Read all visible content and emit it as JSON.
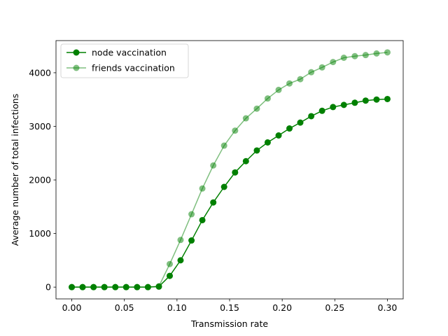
{
  "chart_data": {
    "type": "line",
    "title": "",
    "xlabel": "Transmission rate",
    "ylabel": "Average number of total infections",
    "xlim": [
      -0.015,
      0.315
    ],
    "ylim": [
      -220,
      4600
    ],
    "xticks": [
      0.0,
      0.05,
      0.1,
      0.15,
      0.2,
      0.25,
      0.3
    ],
    "xtick_labels": [
      "0.00",
      "0.05",
      "0.10",
      "0.15",
      "0.20",
      "0.25",
      "0.30"
    ],
    "yticks": [
      0,
      1000,
      2000,
      3000,
      4000
    ],
    "ytick_labels": [
      "0",
      "1000",
      "2000",
      "3000",
      "4000"
    ],
    "grid": false,
    "legend_position": "top-left",
    "x": [
      0.0,
      0.0103,
      0.0207,
      0.031,
      0.0414,
      0.0517,
      0.0621,
      0.0724,
      0.0828,
      0.0931,
      0.1034,
      0.1138,
      0.1241,
      0.1345,
      0.1448,
      0.1552,
      0.1655,
      0.1759,
      0.1862,
      0.1966,
      0.2069,
      0.2172,
      0.2276,
      0.2379,
      0.2483,
      0.2586,
      0.269,
      0.2793,
      0.2897,
      0.3
    ],
    "series": [
      {
        "name": "node vaccination",
        "color": "#008000",
        "opacity": 1.0,
        "values": [
          0,
          0,
          0,
          0,
          0,
          0,
          0,
          0,
          10,
          210,
          500,
          870,
          1250,
          1580,
          1870,
          2140,
          2350,
          2550,
          2700,
          2830,
          2960,
          3070,
          3190,
          3290,
          3360,
          3400,
          3440,
          3480,
          3500,
          3510
        ]
      },
      {
        "name": "friends vaccination",
        "color": "#008000",
        "opacity": 0.5,
        "values": [
          0,
          0,
          0,
          0,
          0,
          0,
          0,
          0,
          15,
          430,
          880,
          1360,
          1840,
          2270,
          2640,
          2920,
          3150,
          3330,
          3520,
          3680,
          3800,
          3880,
          4010,
          4100,
          4200,
          4280,
          4310,
          4330,
          4360,
          4380
        ]
      }
    ]
  }
}
